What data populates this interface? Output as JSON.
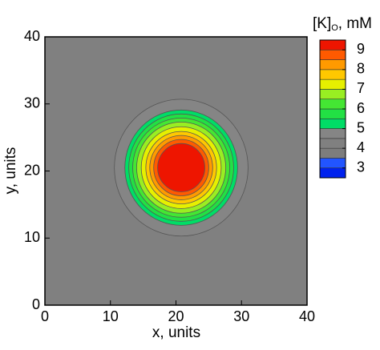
{
  "chart_data": {
    "type": "contour",
    "xlabel": "x, units",
    "ylabel": "y, units",
    "xlim": [
      0,
      40
    ],
    "ylim": [
      0,
      40
    ],
    "xticks": [
      0,
      10,
      20,
      30,
      40
    ],
    "yticks": [
      0,
      10,
      20,
      30,
      40
    ],
    "background_value": 4.2,
    "center": {
      "x": 20.8,
      "y": 20.5
    },
    "rings": [
      {
        "level": 4.7,
        "r": 10.2
      },
      {
        "level": 5.2,
        "r": 8.6
      },
      {
        "level": 5.7,
        "r": 8.0
      },
      {
        "level": 6.2,
        "r": 7.4
      },
      {
        "level": 6.7,
        "r": 6.8
      },
      {
        "level": 7.2,
        "r": 6.1
      },
      {
        "level": 7.7,
        "r": 5.4
      },
      {
        "level": 8.2,
        "r": 4.8
      },
      {
        "level": 8.7,
        "r": 4.2
      },
      {
        "level": 9.2,
        "r": 3.6
      }
    ],
    "colorbar": {
      "title": "[K]",
      "subscript": "O",
      "unit": ", mM",
      "levels": [
        2.5,
        3,
        3.5,
        4,
        4.5,
        5,
        5.5,
        6,
        6.5,
        7,
        7.5,
        8,
        8.5,
        9,
        9.5
      ],
      "colors": [
        "#0022ee",
        "#2255ff",
        "#7d7d7d",
        "#808080",
        "#858585",
        "#00dd66",
        "#22e044",
        "#44e633",
        "#99ee22",
        "#e6f000",
        "#ffc800",
        "#ff9a00",
        "#ff5a00",
        "#ee1500"
      ],
      "ticks": [
        3,
        4,
        5,
        6,
        7,
        8,
        9
      ]
    }
  }
}
